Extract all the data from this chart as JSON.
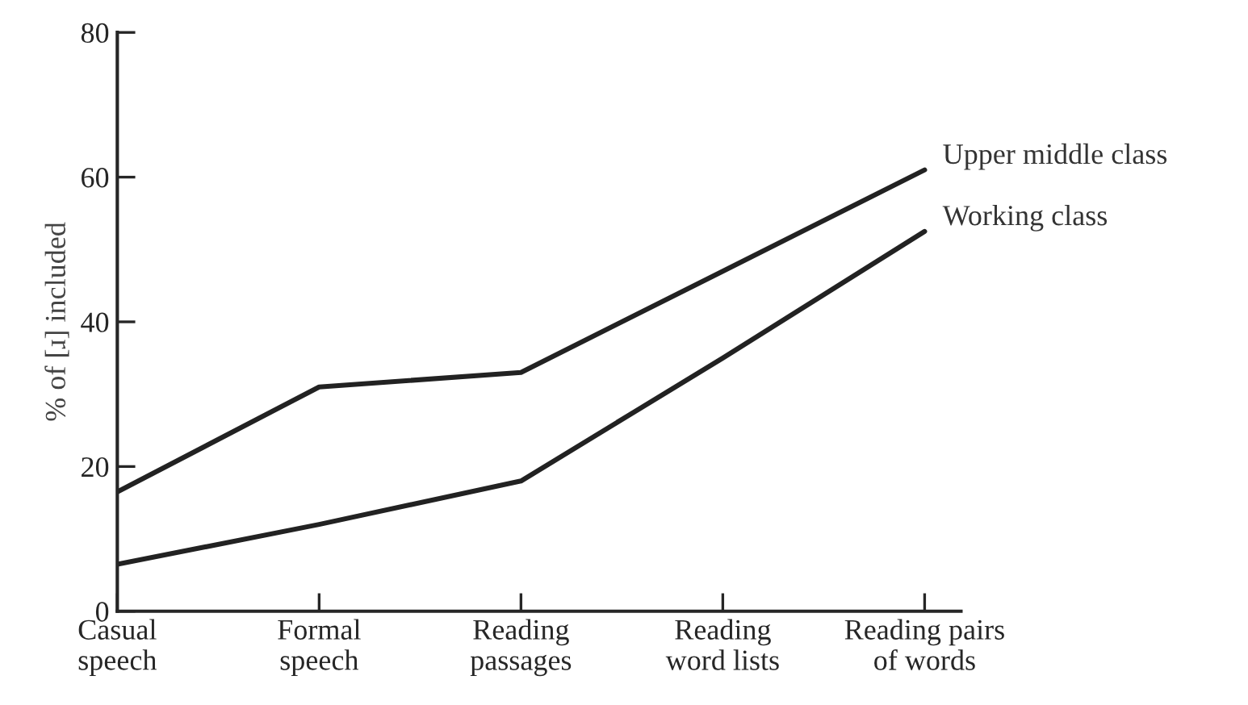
{
  "chart_data": {
    "type": "line",
    "ylabel": "% of [ɹ] included",
    "categories": [
      "Casual\nspeech",
      "Formal\nspeech",
      "Reading\npassages",
      "Reading\nword lists",
      "Reading pairs\nof words"
    ],
    "series": [
      {
        "name": "Upper middle class",
        "color": "#222222",
        "values": [
          16.5,
          31,
          33,
          47,
          61
        ]
      },
      {
        "name": "Working class",
        "color": "#222222",
        "values": [
          6.5,
          12,
          18,
          35,
          52.5
        ]
      }
    ],
    "ylim": [
      0,
      80
    ],
    "yticks": [
      0,
      20,
      40,
      60,
      80
    ],
    "grid": false,
    "legend": false,
    "marker": "none",
    "line_style": "solid"
  }
}
